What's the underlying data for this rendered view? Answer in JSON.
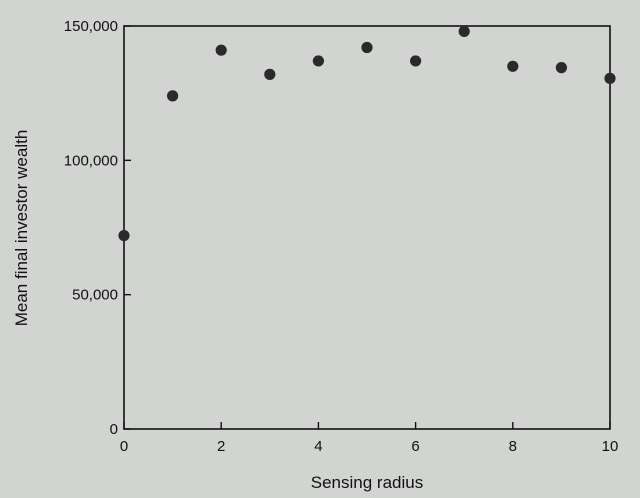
{
  "chart_data": {
    "type": "scatter",
    "title": "",
    "xlabel": "Sensing radius",
    "ylabel": "Mean final investor wealth",
    "xlim": [
      0,
      10
    ],
    "ylim": [
      0,
      150000
    ],
    "x_ticks": [
      0,
      2,
      4,
      6,
      8,
      10
    ],
    "x_tick_labels": [
      "0",
      "2",
      "4",
      "6",
      "8",
      "10"
    ],
    "y_ticks": [
      0,
      50000,
      100000,
      150000
    ],
    "y_tick_labels": [
      "0",
      "50,000",
      "100,000",
      "150,000"
    ],
    "grid": false,
    "legend": "none",
    "series": [
      {
        "x": [
          0,
          1,
          2,
          3,
          4,
          5,
          6,
          7,
          8,
          9,
          10
        ],
        "y": [
          72000,
          124000,
          141000,
          132000,
          137000,
          142000,
          137000,
          148000,
          135000,
          134500,
          130500
        ]
      }
    ],
    "marker_color": "#2a2a2a"
  }
}
